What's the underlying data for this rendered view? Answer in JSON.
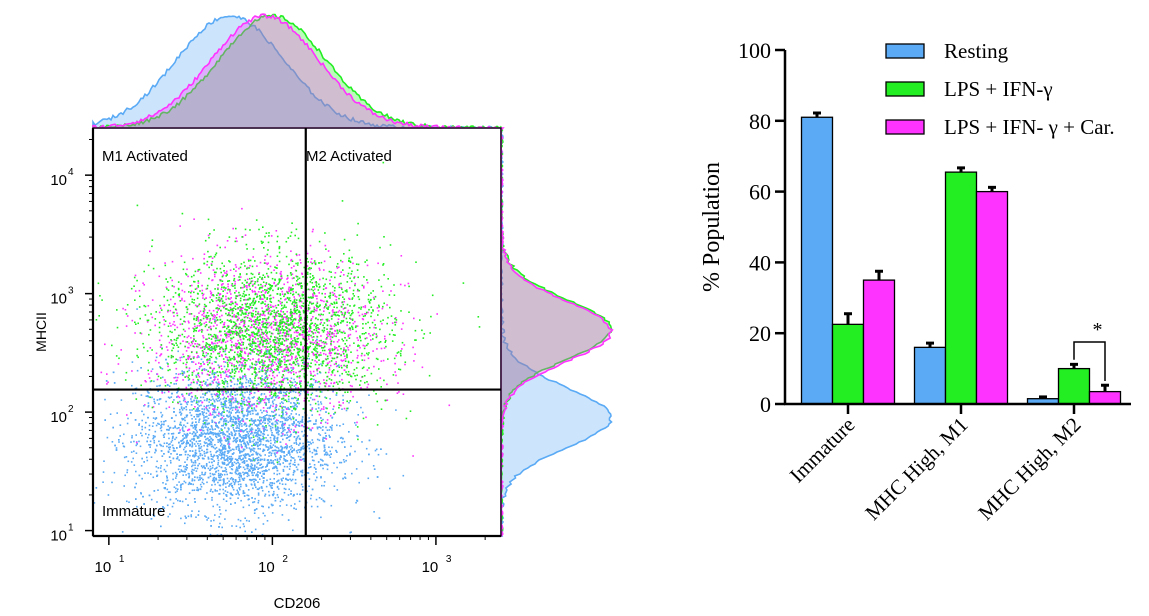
{
  "colors": {
    "resting": "#5aaaf5",
    "lps": "#22ee22",
    "lps_car": "#ff33ff",
    "axis": "#000000"
  },
  "chart_data": [
    {
      "type": "scatter",
      "xlabel": "CD206",
      "ylabel": "MHCII",
      "xscale": "log",
      "yscale": "log",
      "xlim": [
        8,
        2500
      ],
      "ylim": [
        9,
        25000
      ],
      "x_tick_labels": [
        {
          "value": 10,
          "base": "10",
          "exp": "1"
        },
        {
          "value": 100,
          "base": "10",
          "exp": "2"
        },
        {
          "value": 1000,
          "base": "10",
          "exp": "3"
        }
      ],
      "y_tick_labels": [
        {
          "value": 10,
          "base": "10",
          "exp": "1"
        },
        {
          "value": 100,
          "base": "10",
          "exp": "2"
        },
        {
          "value": 1000,
          "base": "10",
          "exp": "3"
        },
        {
          "value": 10000,
          "base": "10",
          "exp": "4"
        }
      ],
      "gates": {
        "x": 160,
        "y": 155
      },
      "quadrant_labels": {
        "top_left": "M1 Activated",
        "top_right": "M2 Activated",
        "bottom_left": "Immature"
      },
      "populations": [
        {
          "key": "resting",
          "color": "#5aaaf5",
          "center_x": 60,
          "center_y": 60,
          "spread_x": 0.28,
          "spread_y": 0.28
        },
        {
          "key": "lps",
          "color": "#22ee22",
          "center_x": 100,
          "center_y": 500,
          "spread_x": 0.32,
          "spread_y": 0.3
        },
        {
          "key": "lps_car",
          "color": "#ff33ff",
          "center_x": 90,
          "center_y": 430,
          "spread_x": 0.32,
          "spread_y": 0.3
        }
      ],
      "marginal_histograms": {
        "top": [
          {
            "key": "resting",
            "peak_x": 55
          },
          {
            "key": "lps",
            "peak_x": 100
          },
          {
            "key": "lps_car",
            "peak_x": 90
          }
        ],
        "right": [
          {
            "key": "resting",
            "peak_y": 90
          },
          {
            "key": "lps",
            "peak_y": 500
          },
          {
            "key": "lps_car",
            "peak_y": 480
          }
        ]
      }
    },
    {
      "type": "bar",
      "ylabel": "% Population",
      "ylim": [
        0,
        100
      ],
      "yticks": [
        0,
        20,
        40,
        60,
        80,
        100
      ],
      "categories": [
        "Immature",
        "MHC High, M1",
        "MHC High, M2"
      ],
      "series": [
        {
          "name": "Resting",
          "color": "#5aaaf5",
          "values": [
            81,
            16,
            1.5
          ],
          "errors": [
            1.2,
            1.2,
            0.5
          ]
        },
        {
          "name": "LPS + IFN-γ",
          "color": "#22ee22",
          "values": [
            22.5,
            65.5,
            10
          ],
          "errors": [
            3,
            1.2,
            1.2
          ]
        },
        {
          "name": "LPS + IFN- γ + Car.",
          "color": "#ff33ff",
          "values": [
            35,
            60,
            3.5
          ],
          "errors": [
            2.5,
            1.2,
            1.8
          ]
        }
      ],
      "significance": {
        "label": "*",
        "category": "MHC High, M2",
        "between": [
          "LPS + IFN-γ",
          "LPS + IFN- γ + Car."
        ]
      },
      "legend": "top-right"
    }
  ]
}
